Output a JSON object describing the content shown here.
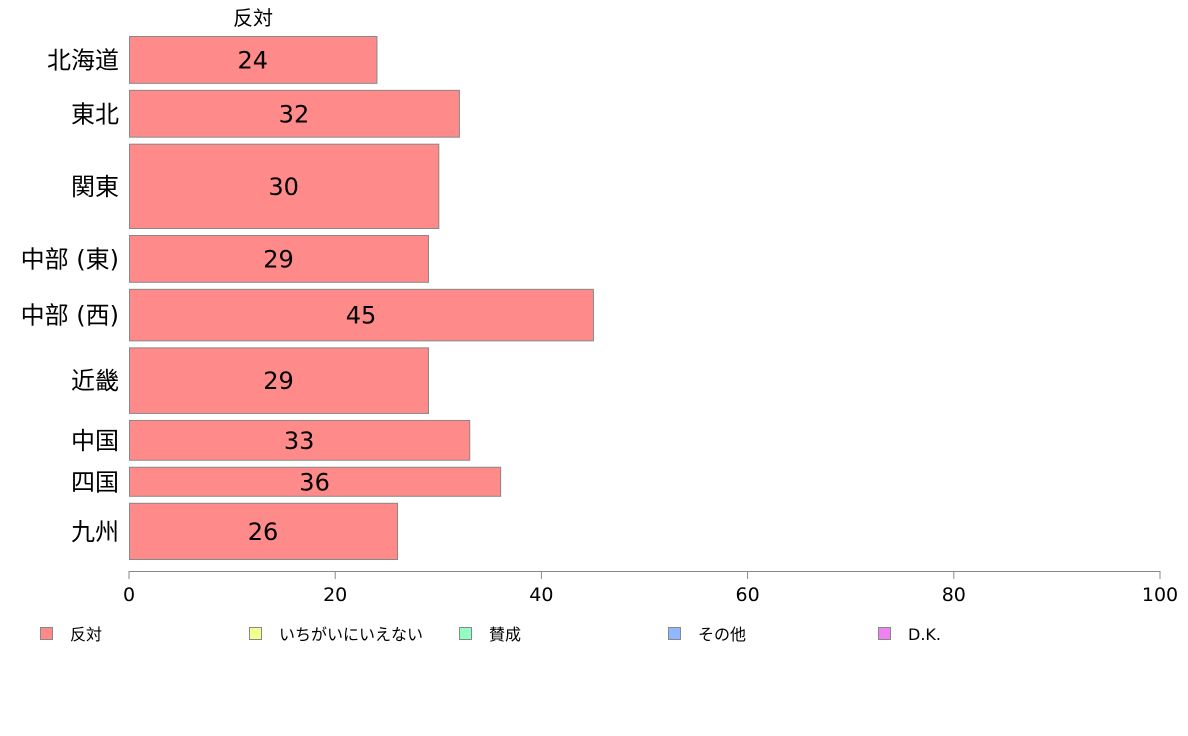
{
  "chart_data": {
    "type": "bar",
    "orientation": "horizontal",
    "series_title": "反対",
    "categories": [
      "北海道",
      "東北",
      "関東",
      "中部 (東)",
      "中部 (西)",
      "近畿",
      "中国",
      "四国",
      "九州"
    ],
    "series": [
      {
        "name": "反対",
        "values": [
          24,
          32,
          30,
          29,
          45,
          29,
          33,
          36,
          26
        ],
        "color": "#ff8a8a"
      }
    ],
    "value_labels": [
      "24",
      "32",
      "30",
      "29",
      "45",
      "29",
      "33",
      "36",
      "26"
    ],
    "relative_widths": [
      1.0,
      1.0,
      1.8,
      1.0,
      1.1,
      1.4,
      0.85,
      0.62,
      1.2
    ],
    "xlim": [
      0,
      100
    ],
    "xticks": [
      0,
      20,
      40,
      60,
      80,
      100
    ],
    "xtick_labels": [
      "0",
      "20",
      "40",
      "60",
      "80",
      "100"
    ],
    "grid": false,
    "legend_position": "bottom",
    "legend": [
      {
        "label": "反対",
        "color": "#ff8a8a"
      },
      {
        "label": "いちがいにいえない",
        "color": "#f0ff90"
      },
      {
        "label": "賛成",
        "color": "#90ffc0"
      },
      {
        "label": "その他",
        "color": "#90b8ff"
      },
      {
        "label": "D.K.",
        "color": "#ee82ee"
      }
    ]
  }
}
